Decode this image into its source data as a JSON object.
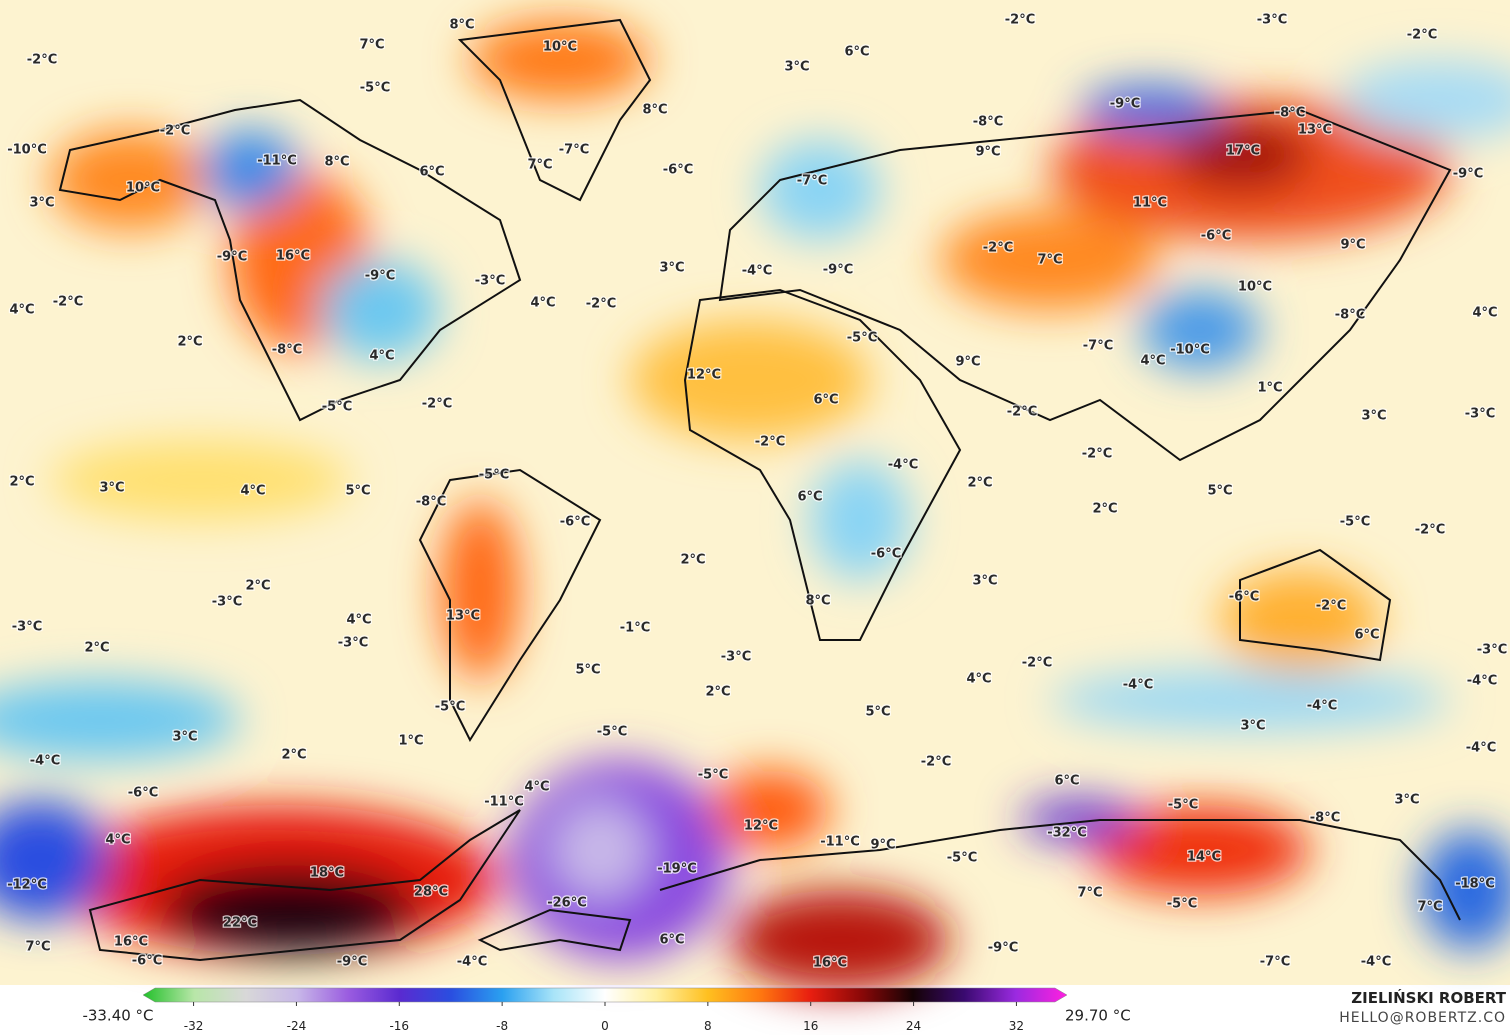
{
  "labels": [
    "-2°C",
    "8°C",
    "10°C",
    "7°C",
    "6°C",
    "3°C",
    "-2°C",
    "-3°C",
    "-2°C",
    "8°C",
    "-5°C",
    "-2°C",
    "-10°C",
    "-11°C",
    "8°C",
    "6°C",
    "-7°C",
    "7°C",
    "-6°C",
    "-8°C",
    "9°C",
    "-9°C",
    "-8°C",
    "13°C",
    "17°C",
    "-9°C",
    "10°C",
    "3°C",
    "-7°C",
    "11°C",
    "-9°C",
    "16°C",
    "-9°C",
    "-3°C",
    "3°C",
    "-4°C",
    "-9°C",
    "-2°C",
    "7°C",
    "-6°C",
    "9°C",
    "10°C",
    "-2°C",
    "4°C",
    "4°C",
    "-2°C",
    "-8°C",
    "4°C",
    "2°C",
    "-8°C",
    "4°C",
    "-5°C",
    "-7°C",
    "-10°C",
    "4°C",
    "9°C",
    "12°C",
    "1°C",
    "-5°C",
    "-2°C",
    "6°C",
    "-2°C",
    "3°C",
    "-3°C",
    "-2°C",
    "-4°C",
    "-2°C",
    "2°C",
    "3°C",
    "4°C",
    "5°C",
    "-5°C",
    "2°C",
    "6°C",
    "-8°C",
    "-6°C",
    "2°C",
    "5°C",
    "-5°C",
    "-2°C",
    "2°C",
    "-6°C",
    "3°C",
    "2°C",
    "-3°C",
    "8°C",
    "-6°C",
    "-2°C",
    "-3°C",
    "4°C",
    "13°C",
    "-1°C",
    "-3°C",
    "6°C",
    "2°C",
    "-3°C",
    "5°C",
    "-3°C",
    "-2°C",
    "4°C",
    "-4°C",
    "-4°C",
    "2°C",
    "-5°C",
    "5°C",
    "-4°C",
    "3°C",
    "-5°C",
    "3°C",
    "1°C",
    "2°C",
    "-4°C",
    "-2°C",
    "-4°C",
    "-5°C",
    "6°C",
    "4°C",
    "-6°C",
    "-11°C",
    "3°C",
    "-5°C",
    "-8°C",
    "12°C",
    "4°C",
    "-11°C",
    "9°C",
    "-32°C",
    "-5°C",
    "14°C",
    "18°C",
    "-19°C",
    "-12°C",
    "28°C",
    "-18°C",
    "7°C",
    "-5°C",
    "-26°C",
    "7°C",
    "22°C",
    "6°C",
    "16°C",
    "7°C",
    "-9°C",
    "-6°C",
    "-9°C",
    "-4°C",
    "16°C",
    "-7°C",
    "-4°C"
  ],
  "legend": {
    "min_label": "-33.40 °C",
    "max_label": "29.70 °C",
    "range": [
      -35,
      35
    ],
    "ticks": [
      -32,
      -24,
      -16,
      -8,
      0,
      8,
      16,
      24,
      32
    ],
    "colors": [
      "#22c02a",
      "#b8e6a8",
      "#d8d8d8",
      "#c8b8e8",
      "#9a5ce0",
      "#5a2ad0",
      "#2a4ee0",
      "#2aa0f0",
      "#a8e4f8",
      "#ffffff",
      "#fff0a0",
      "#ffc020",
      "#ff7a10",
      "#e81e10",
      "#8a0808",
      "#150205",
      "#3a0a70",
      "#9a2ae0",
      "#ff20e0"
    ]
  },
  "credit": {
    "name": "ZIELIŃSKI ROBERT",
    "email": "HELLO@ROBERTZ.CO"
  }
}
